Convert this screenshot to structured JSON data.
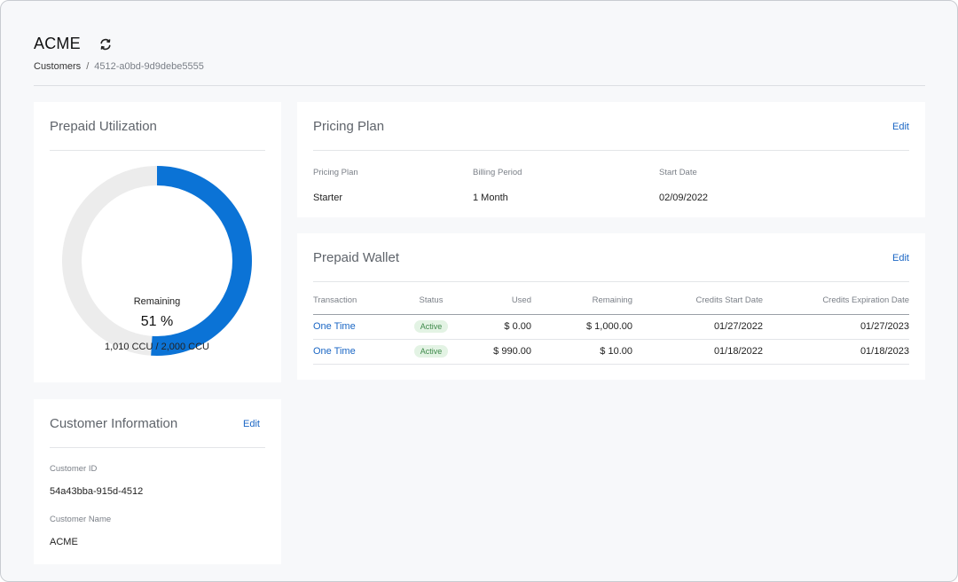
{
  "header": {
    "title": "ACME",
    "breadcrumb": {
      "root": "Customers",
      "separator": "/",
      "current": "4512-a0bd-9d9debe5555"
    }
  },
  "utilization": {
    "title": "Prepaid Utilization",
    "remaining_label": "Remaining",
    "remaining_percent": "51 %",
    "remaining_fraction": 0.51,
    "ccu_text": "1,010 CCU / 2,000 CCU",
    "colors": {
      "fill": "#0b73d6",
      "track": "#ececec"
    }
  },
  "customer": {
    "title": "Customer Information",
    "edit_label": "Edit",
    "id_label": "Customer ID",
    "id_value": "54a43bba-915d-4512",
    "name_label": "Customer Name",
    "name_value": "ACME"
  },
  "pricing": {
    "title": "Pricing Plan",
    "edit_label": "Edit",
    "plan_label": "Pricing Plan",
    "plan_value": "Starter",
    "period_label": "Billing Period",
    "period_value": "1 Month",
    "start_label": "Start Date",
    "start_value": "02/09/2022"
  },
  "wallet": {
    "title": "Prepaid Wallet",
    "edit_label": "Edit",
    "columns": [
      "Transaction",
      "Status",
      "Used",
      "Remaining",
      "Credits Start Date",
      "Credits Expiration Date"
    ],
    "rows": [
      {
        "transaction": "One Time",
        "status": "Active",
        "used": "$ 0.00",
        "remaining": "$ 1,000.00",
        "start": "01/27/2022",
        "expiration": "01/27/2023"
      },
      {
        "transaction": "One Time",
        "status": "Active",
        "used": "$ 990.00",
        "remaining": "$ 10.00",
        "start": "01/18/2022",
        "expiration": "01/18/2023"
      }
    ]
  }
}
